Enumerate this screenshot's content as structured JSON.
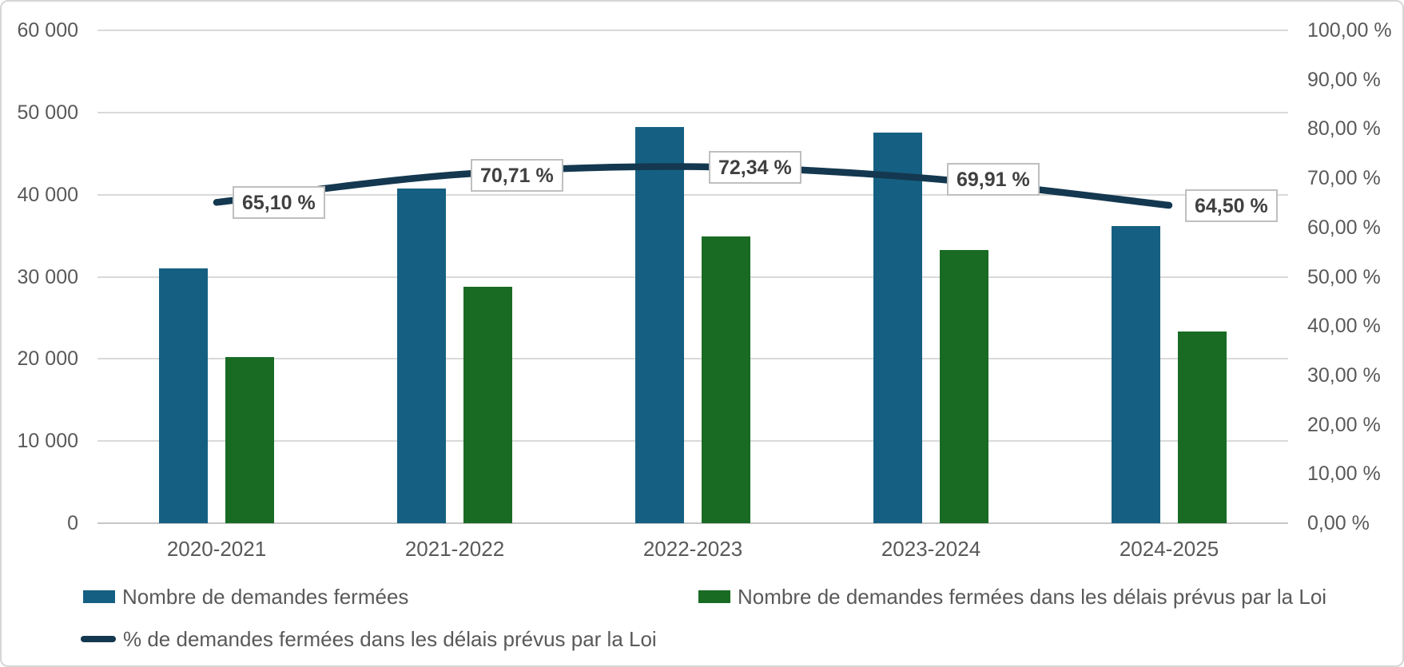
{
  "chart_data": {
    "type": "combo_bar_line",
    "categories": [
      "2020-2021",
      "2021-2022",
      "2022-2023",
      "2023-2024",
      "2024-2025"
    ],
    "series": [
      {
        "name": "Nombre de demandes fermées",
        "type": "bar",
        "color": "#156082",
        "axis": "left",
        "values": [
          31000,
          40700,
          48200,
          47600,
          36200
        ]
      },
      {
        "name": "Nombre de demandes fermées dans les délais prévus par la Loi",
        "type": "bar",
        "color": "#196B24",
        "axis": "left",
        "values": [
          20200,
          28800,
          34900,
          33300,
          23300
        ]
      },
      {
        "name": "% de demandes fermées dans les délais prévus par la Loi",
        "type": "line",
        "color": "#14384F",
        "axis": "right",
        "smooth": true,
        "values": [
          65.1,
          70.71,
          72.34,
          69.91,
          64.5
        ],
        "point_labels": [
          "65,10 %",
          "70,71 %",
          "72,34 %",
          "69,91 %",
          "64,50 %"
        ]
      }
    ],
    "left_axis": {
      "min": 0,
      "max": 60000,
      "tick_labels": [
        "0",
        "10 000",
        "20 000",
        "30 000",
        "40 000",
        "50 000",
        "60 000"
      ]
    },
    "right_axis": {
      "min": 0,
      "max": 100,
      "tick_labels": [
        "0,00 %",
        "10,00 %",
        "20,00 %",
        "30,00 %",
        "40,00 %",
        "50,00 %",
        "60,00 %",
        "70,00 %",
        "80,00 %",
        "90,00 %",
        "100,00 %"
      ]
    },
    "grid": true,
    "legend_position": "bottom",
    "title": ""
  },
  "colors": {
    "bar_blue": "#156082",
    "bar_green": "#196B24",
    "line_navy": "#14384F",
    "gridline": "#D9D9D9",
    "axis_text": "#595959",
    "point_label_text": "#404040",
    "point_label_border": "#BFBFBF",
    "chart_border": "#D6D6D6"
  }
}
